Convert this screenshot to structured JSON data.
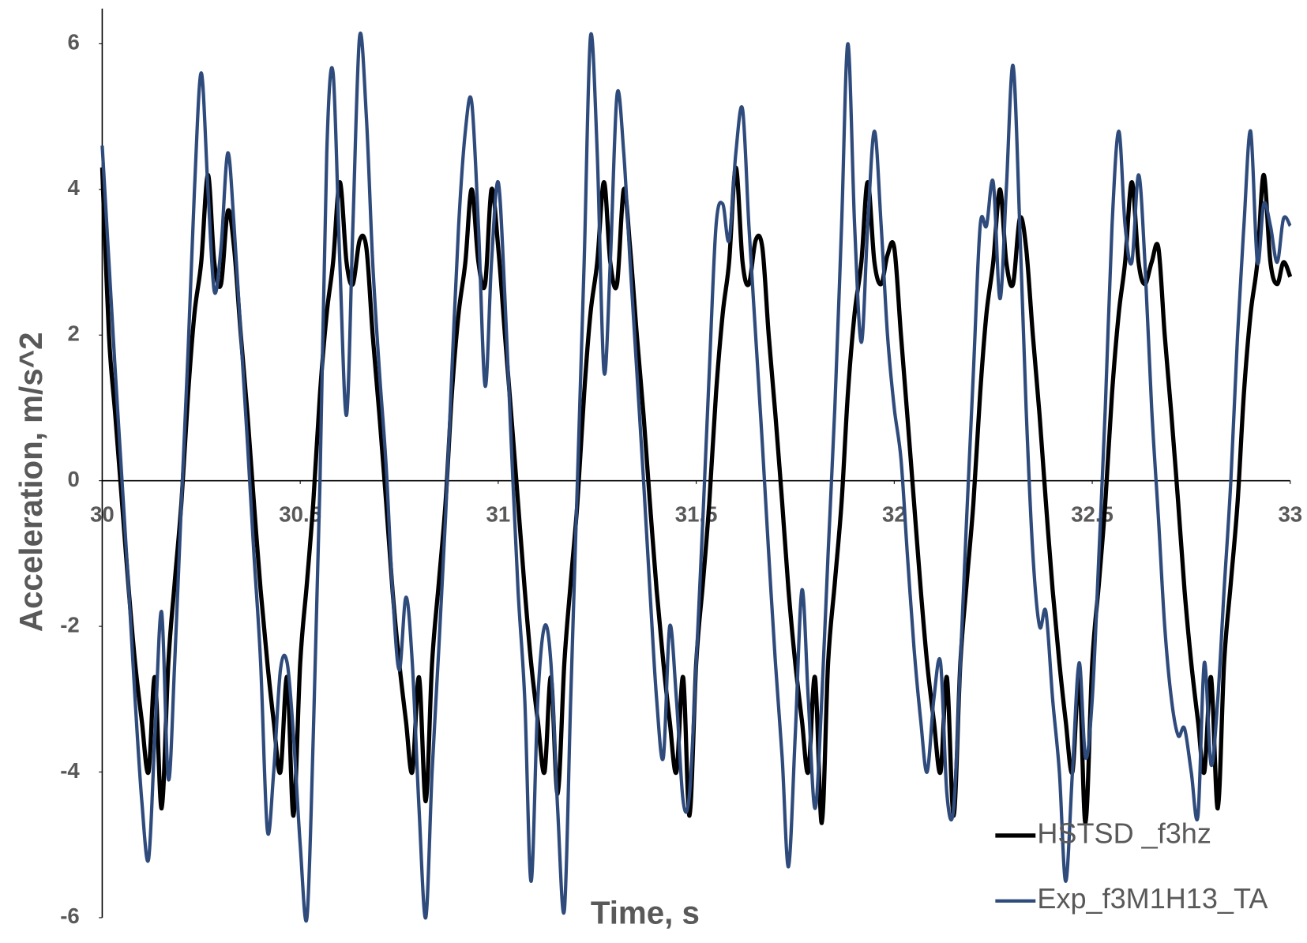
{
  "chart_data": {
    "type": "line",
    "x_label": "Time, s",
    "y_label": "Acceleration, m/s^2",
    "xlim": [
      30,
      33
    ],
    "xticks": [
      30,
      30.5,
      31,
      31.5,
      32,
      32.5,
      33
    ],
    "ylim": [
      -6,
      6
    ],
    "yticks": [
      -6,
      -4,
      -2,
      0,
      2,
      4,
      6
    ],
    "grid": false,
    "legend": "lower right",
    "x": [
      30,
      30.017,
      30.033,
      30.05,
      30.067,
      30.083,
      30.1,
      30.117,
      30.133,
      30.15,
      30.167,
      30.183,
      30.2,
      30.217,
      30.233,
      30.25,
      30.267,
      30.283,
      30.3,
      30.317,
      30.333,
      30.35,
      30.367,
      30.383,
      30.4,
      30.417,
      30.433,
      30.45,
      30.467,
      30.483,
      30.5,
      30.517,
      30.533,
      30.55,
      30.567,
      30.583,
      30.6,
      30.617,
      30.633,
      30.65,
      30.667,
      30.683,
      30.7,
      30.717,
      30.733,
      30.75,
      30.767,
      30.783,
      30.8,
      30.817,
      30.833,
      30.85,
      30.867,
      30.883,
      30.9,
      30.917,
      30.933,
      30.95,
      30.967,
      30.983,
      31,
      31.017,
      31.033,
      31.05,
      31.067,
      31.083,
      31.1,
      31.117,
      31.133,
      31.15,
      31.167,
      31.183,
      31.2,
      31.217,
      31.233,
      31.25,
      31.267,
      31.283,
      31.3,
      31.317,
      31.333,
      31.35,
      31.367,
      31.383,
      31.4,
      31.417,
      31.433,
      31.45,
      31.467,
      31.483,
      31.5,
      31.517,
      31.533,
      31.55,
      31.567,
      31.583,
      31.6,
      31.617,
      31.633,
      31.65,
      31.667,
      31.683,
      31.7,
      31.717,
      31.733,
      31.75,
      31.767,
      31.783,
      31.8,
      31.817,
      31.833,
      31.85,
      31.867,
      31.883,
      31.9,
      31.917,
      31.933,
      31.95,
      31.967,
      31.983,
      32,
      32.017,
      32.033,
      32.05,
      32.067,
      32.083,
      32.1,
      32.117,
      32.133,
      32.15,
      32.167,
      32.183,
      32.2,
      32.217,
      32.233,
      32.25,
      32.267,
      32.283,
      32.3,
      32.317,
      32.333,
      32.35,
      32.367,
      32.383,
      32.4,
      32.417,
      32.433,
      32.45,
      32.467,
      32.483,
      32.5,
      32.517,
      32.533,
      32.55,
      32.567,
      32.583,
      32.6,
      32.617,
      32.633,
      32.65,
      32.667,
      32.683,
      32.7,
      32.717,
      32.733,
      32.75,
      32.767,
      32.783,
      32.8,
      32.817,
      32.833,
      32.85,
      32.867,
      32.883,
      32.9,
      32.917,
      32.933,
      32.95,
      32.967,
      32.983,
      33
    ],
    "series": [
      {
        "name": "HSTSD _f3hz",
        "color": "#000000",
        "values": [
          4.3,
          2.0,
          0.9,
          -0.3,
          -1.5,
          -2.5,
          -3.3,
          -4.0,
          -2.7,
          -4.5,
          -2.5,
          -1.4,
          -0.3,
          1.2,
          2.3,
          3.0,
          4.2,
          3.0,
          2.7,
          3.7,
          3.2,
          2.0,
          0.9,
          -0.3,
          -1.5,
          -2.5,
          -3.3,
          -4.0,
          -2.7,
          -4.6,
          -2.5,
          -1.4,
          -0.3,
          1.2,
          2.3,
          3.0,
          4.1,
          3.0,
          2.7,
          3.3,
          3.2,
          2.0,
          0.9,
          -0.3,
          -1.5,
          -2.5,
          -3.3,
          -4.0,
          -2.7,
          -4.4,
          -2.5,
          -1.4,
          -0.3,
          1.2,
          2.3,
          3.0,
          4.0,
          3.0,
          2.7,
          4.0,
          3.2,
          2.0,
          0.9,
          -0.3,
          -1.5,
          -2.5,
          -3.3,
          -4.0,
          -2.7,
          -4.3,
          -2.5,
          -1.4,
          -0.3,
          1.2,
          2.3,
          3.0,
          4.1,
          3.0,
          2.7,
          4.0,
          3.2,
          2.0,
          0.9,
          -0.3,
          -1.5,
          -2.5,
          -3.3,
          -4.0,
          -2.7,
          -4.6,
          -2.5,
          -1.4,
          -0.3,
          1.2,
          2.3,
          3.0,
          4.3,
          3.0,
          2.7,
          3.3,
          3.2,
          2.0,
          0.9,
          -0.3,
          -1.5,
          -2.5,
          -3.3,
          -4.0,
          -2.7,
          -4.7,
          -2.5,
          -1.4,
          -0.3,
          1.2,
          2.3,
          3.0,
          4.1,
          3.0,
          2.7,
          3.1,
          3.2,
          2.0,
          0.9,
          -0.3,
          -1.5,
          -2.5,
          -3.3,
          -4.0,
          -2.7,
          -4.6,
          -2.5,
          -1.4,
          -0.3,
          1.2,
          2.3,
          3.0,
          4.0,
          3.0,
          2.7,
          3.6,
          3.2,
          2.0,
          0.9,
          -0.3,
          -1.5,
          -2.5,
          -3.3,
          -4.0,
          -2.7,
          -4.7,
          -2.5,
          -1.4,
          -0.3,
          1.2,
          2.3,
          3.0,
          4.1,
          3.0,
          2.7,
          3.0,
          3.2,
          2.0,
          0.9,
          -0.3,
          -1.5,
          -2.5,
          -3.3,
          -4.0,
          -2.7,
          -4.5,
          -2.5,
          -1.4,
          -0.3,
          1.2,
          2.3,
          3.0,
          4.2,
          3.0,
          2.7,
          3.0,
          2.8
        ]
      },
      {
        "name": "Exp_f3M1H13_TA",
        "color": "#2f4b7c",
        "values": [
          4.6,
          3.0,
          1.5,
          0.0,
          -1.5,
          -3.0,
          -4.4,
          -5.2,
          -3.5,
          -1.8,
          -4.1,
          -2.5,
          -0.3,
          1.8,
          4.0,
          5.6,
          4.0,
          2.6,
          3.2,
          4.5,
          3.5,
          2.0,
          0.5,
          -1.0,
          -2.5,
          -4.8,
          -4.0,
          -2.6,
          -2.5,
          -3.5,
          -5.0,
          -6.0,
          -3.5,
          0.0,
          4.5,
          5.6,
          3.0,
          0.9,
          3.5,
          6.1,
          5.0,
          3.0,
          1.5,
          0.2,
          -1.5,
          -2.6,
          -1.6,
          -2.5,
          -4.5,
          -6.0,
          -4.0,
          -2.3,
          -0.5,
          1.5,
          3.5,
          4.8,
          5.2,
          3.5,
          1.3,
          3.0,
          4.1,
          2.5,
          0.5,
          -1.5,
          -3.0,
          -5.5,
          -3.0,
          -2.0,
          -2.5,
          -4.5,
          -5.9,
          -3.0,
          0.0,
          3.0,
          6.1,
          4.5,
          1.5,
          3.0,
          5.3,
          4.5,
          3.0,
          1.5,
          0.0,
          -1.5,
          -3.0,
          -3.8,
          -2.0,
          -3.0,
          -4.4,
          -4.3,
          -2.5,
          -0.5,
          1.5,
          3.5,
          3.8,
          3.3,
          4.5,
          5.1,
          3.5,
          2.0,
          0.5,
          -1.0,
          -2.5,
          -3.8,
          -5.3,
          -3.5,
          -1.5,
          -3.0,
          -4.5,
          -3.0,
          -1.0,
          1.0,
          3.5,
          6.0,
          3.5,
          1.9,
          3.5,
          4.8,
          3.5,
          2.0,
          1.0,
          0.3,
          -1.0,
          -2.3,
          -3.3,
          -4.0,
          -3.0,
          -2.5,
          -4.3,
          -4.5,
          -2.5,
          -0.5,
          1.5,
          3.5,
          3.5,
          4.1,
          2.5,
          4.0,
          5.7,
          3.5,
          1.0,
          -1.0,
          -2.0,
          -1.8,
          -3.0,
          -4.0,
          -5.5,
          -4.0,
          -2.5,
          -3.8,
          -3.0,
          -1.0,
          1.0,
          3.5,
          4.8,
          3.5,
          3.0,
          4.2,
          3.0,
          1.0,
          -0.5,
          -2.0,
          -3.0,
          -3.5,
          -3.4,
          -4.0,
          -4.6,
          -2.5,
          -3.9,
          -3.0,
          -1.5,
          0.0,
          2.0,
          3.5,
          4.8,
          3.0,
          3.8,
          3.5,
          3.0,
          3.6,
          3.5
        ]
      }
    ]
  }
}
